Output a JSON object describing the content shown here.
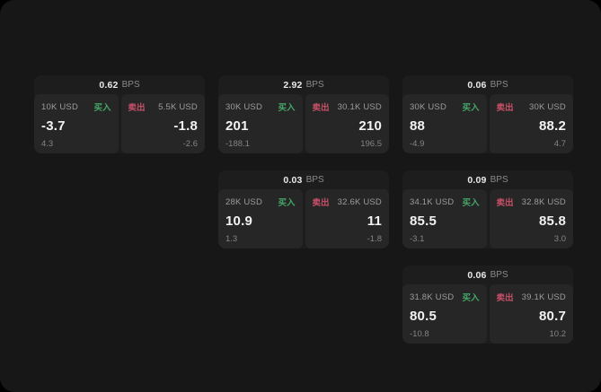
{
  "labels": {
    "bps_unit": "BPS",
    "buy": "买入",
    "sell": "卖出"
  },
  "colors": {
    "buy": "#46a567",
    "sell": "#c75068",
    "screen_bg": "#171717",
    "card_bg": "#1d1d1d",
    "panel_bg": "#262626"
  },
  "cards": [
    {
      "row": 1,
      "col": 1,
      "bps": "0.62",
      "buy": {
        "amount": "10K USD",
        "value": "-3.7",
        "sub": "4.3"
      },
      "sell": {
        "amount": "5.5K USD",
        "value": "-1.8",
        "sub": "-2.6"
      }
    },
    {
      "row": 1,
      "col": 2,
      "bps": "2.92",
      "buy": {
        "amount": "30K USD",
        "value": "201",
        "sub": "-188.1"
      },
      "sell": {
        "amount": "30.1K USD",
        "value": "210",
        "sub": "196.5"
      }
    },
    {
      "row": 1,
      "col": 3,
      "bps": "0.06",
      "buy": {
        "amount": "30K USD",
        "value": "88",
        "sub": "-4.9"
      },
      "sell": {
        "amount": "30K USD",
        "value": "88.2",
        "sub": "4.7"
      }
    },
    {
      "row": 2,
      "col": 2,
      "bps": "0.03",
      "buy": {
        "amount": "28K USD",
        "value": "10.9",
        "sub": "1.3"
      },
      "sell": {
        "amount": "32.6K USD",
        "value": "11",
        "sub": "-1.8"
      }
    },
    {
      "row": 2,
      "col": 3,
      "bps": "0.09",
      "buy": {
        "amount": "34.1K USD",
        "value": "85.5",
        "sub": "-3.1"
      },
      "sell": {
        "amount": "32.8K USD",
        "value": "85.8",
        "sub": "3.0"
      }
    },
    {
      "row": 3,
      "col": 3,
      "bps": "0.06",
      "buy": {
        "amount": "31.8K USD",
        "value": "80.5",
        "sub": "-10.8"
      },
      "sell": {
        "amount": "39.1K USD",
        "value": "80.7",
        "sub": "10.2"
      }
    }
  ]
}
